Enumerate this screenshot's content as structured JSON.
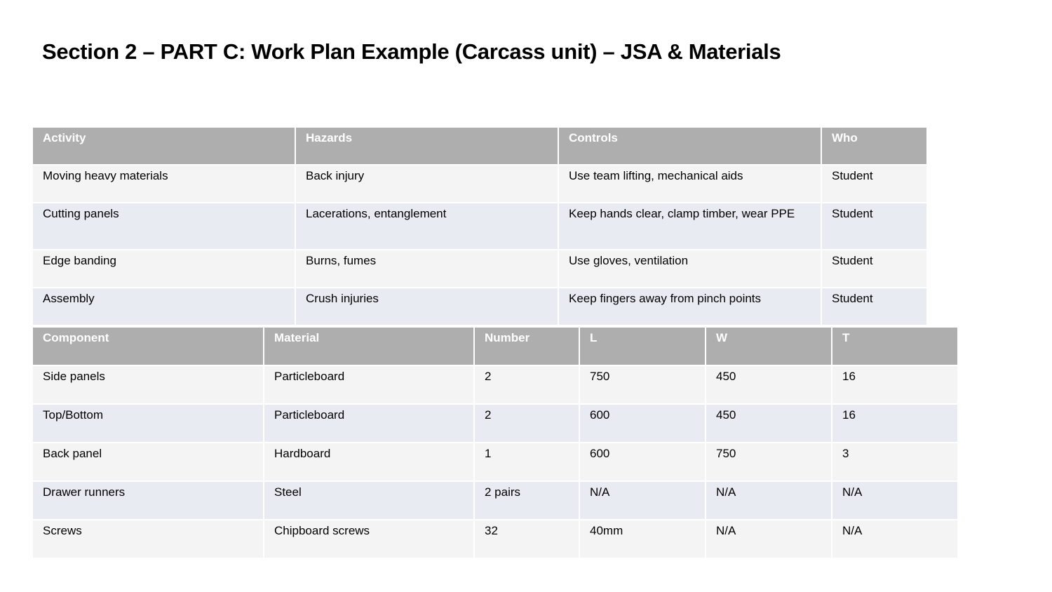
{
  "title": "Section 2 – PART C: Work Plan Example (Carcass unit) – JSA & Materials",
  "jsa_table": {
    "headers": [
      "Activity",
      "Hazards",
      "Controls",
      "Who"
    ],
    "rows": [
      [
        "Moving heavy materials",
        "Back injury",
        "Use team lifting, mechanical aids",
        "Student"
      ],
      [
        "Cutting panels",
        "Lacerations, entanglement",
        "Keep hands clear, clamp timber, wear PPE",
        "Student"
      ],
      [
        "Edge banding",
        "Burns, fumes",
        "Use gloves, ventilation",
        "Student"
      ],
      [
        "Assembly",
        "Crush injuries",
        "Keep fingers away from pinch points",
        "Student"
      ]
    ]
  },
  "materials_table": {
    "headers": [
      "Component",
      "Material",
      "Number",
      "L",
      "W",
      "T"
    ],
    "rows": [
      [
        "Side panels",
        "Particleboard",
        "2",
        "750",
        "450",
        "16"
      ],
      [
        "Top/Bottom",
        "Particleboard",
        "2",
        "600",
        "450",
        "16"
      ],
      [
        "Back panel",
        "Hardboard",
        "1",
        "600",
        "750",
        "3"
      ],
      [
        "Drawer runners",
        "Steel",
        "2 pairs",
        "N/A",
        "N/A",
        "N/A"
      ],
      [
        "Screws",
        "Chipboard screws",
        "32",
        "40mm",
        "N/A",
        "N/A"
      ]
    ]
  }
}
